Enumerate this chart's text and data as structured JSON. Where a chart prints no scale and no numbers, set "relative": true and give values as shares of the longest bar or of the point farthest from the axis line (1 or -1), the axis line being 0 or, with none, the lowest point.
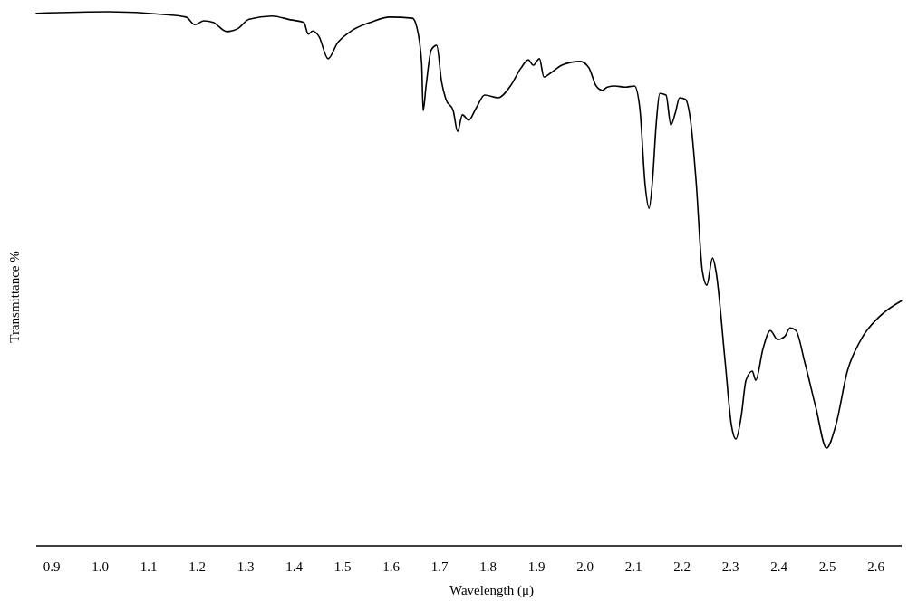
{
  "chart_data": {
    "type": "line",
    "relative": true,
    "xlabel": "Wavelength (μ)",
    "ylabel": "Transmittance %",
    "xlim": [
      0.868,
      2.653
    ],
    "xticks": [
      0.9,
      {
        "value": 1,
        "label": "1.0"
      },
      1.1,
      1.2,
      1.3,
      1.4,
      1.5,
      1.6,
      1.7,
      1.8,
      1.9,
      {
        "value": 2,
        "label": "2.0"
      },
      2.1,
      2.2,
      2.3,
      2.4,
      2.5,
      2.6
    ],
    "x": [
      0.868,
      1.018,
      1.13,
      1.177,
      1.195,
      1.214,
      1.233,
      1.261,
      1.283,
      1.307,
      1.354,
      1.392,
      1.42,
      1.429,
      1.438,
      1.451,
      1.47,
      1.489,
      1.513,
      1.56,
      1.597,
      1.644,
      1.653,
      1.663,
      1.666,
      1.672,
      1.683,
      1.694,
      1.704,
      1.713,
      1.728,
      1.737,
      1.747,
      1.76,
      1.775,
      1.793,
      1.821,
      1.846,
      1.868,
      1.883,
      1.893,
      1.906,
      1.915,
      1.93,
      1.952,
      1.99,
      2.008,
      2.023,
      2.036,
      2.046,
      2.061,
      2.083,
      2.102,
      2.113,
      2.124,
      2.132,
      2.139,
      2.147,
      2.154,
      2.167,
      2.177,
      2.186,
      2.195,
      2.207,
      2.218,
      2.229,
      2.242,
      2.251,
      2.263,
      2.27,
      2.289,
      2.302,
      2.311,
      2.322,
      2.332,
      2.345,
      2.352,
      2.367,
      2.382,
      2.397,
      2.412,
      2.423,
      2.435,
      2.453,
      2.476,
      2.498,
      2.517,
      2.541,
      2.569,
      2.607,
      2.653
    ],
    "series": [
      {
        "color": "#000000",
        "values": [
          0.997,
          1,
          0.995,
          0.99,
          0.976,
          0.983,
          0.98,
          0.963,
          0.968,
          0.986,
          0.992,
          0.985,
          0.98,
          0.958,
          0.964,
          0.954,
          0.912,
          0.941,
          0.961,
          0.981,
          0.99,
          0.988,
          0.971,
          0.903,
          0.815,
          0.861,
          0.929,
          0.937,
          0.869,
          0.836,
          0.815,
          0.776,
          0.807,
          0.797,
          0.819,
          0.844,
          0.839,
          0.861,
          0.895,
          0.91,
          0.9,
          0.912,
          0.878,
          0.886,
          0.9,
          0.907,
          0.895,
          0.861,
          0.853,
          0.859,
          0.861,
          0.859,
          0.861,
          0.819,
          0.675,
          0.632,
          0.683,
          0.793,
          0.847,
          0.844,
          0.788,
          0.81,
          0.839,
          0.836,
          0.793,
          0.683,
          0.514,
          0.488,
          0.539,
          0.514,
          0.344,
          0.225,
          0.2,
          0.242,
          0.31,
          0.327,
          0.31,
          0.369,
          0.403,
          0.386,
          0.392,
          0.408,
          0.403,
          0.344,
          0.259,
          0.183,
          0.225,
          0.327,
          0.386,
          0.429,
          0.459
        ]
      }
    ]
  }
}
